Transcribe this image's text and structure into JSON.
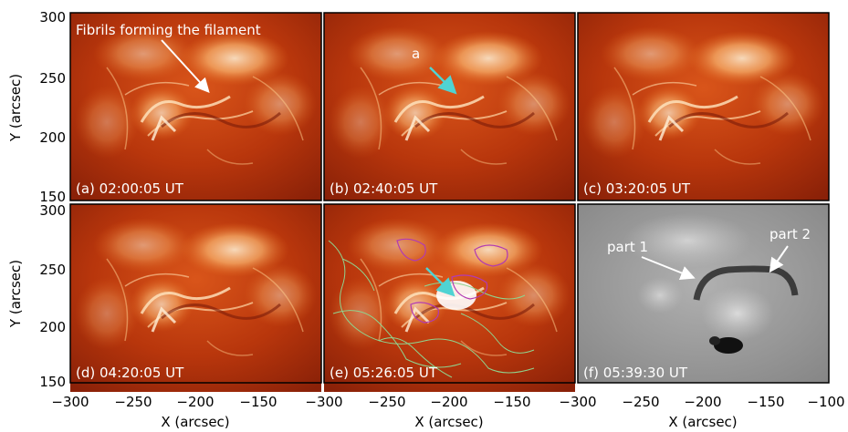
{
  "colors": {
    "aia_dark": "#7a1a08",
    "aia_mid": "#c9420f",
    "aia_bright": "#ffd9a8",
    "halpha_gray": "#9a9a9a",
    "arrow_white": "#ffffff",
    "arrow_cyan": "#4fd3d3",
    "contour_green": "#8fd48f",
    "contour_magenta": "#b23ab2"
  },
  "axes": {
    "y_label": "Y (arcsec)",
    "x_label": "X (arcsec)",
    "y_ticks": [
      "300",
      "250",
      "200",
      "150"
    ],
    "x_ticks_col1": [
      "−300",
      "−250",
      "−200",
      "−150"
    ],
    "x_ticks_col2": [
      "−300",
      "−250",
      "−200",
      "−150"
    ],
    "x_ticks_col3": [
      "−300",
      "−250",
      "−200",
      "−150",
      "−100"
    ]
  },
  "panels": {
    "a": {
      "label": "(a) 02:00:05 UT",
      "annotation": "Fibrils forming the filament"
    },
    "b": {
      "label": "(b) 02:40:05 UT",
      "annotation": "a"
    },
    "c": {
      "label": "(c) 03:20:05 UT"
    },
    "d": {
      "label": "(d) 04:20:05 UT"
    },
    "e": {
      "label": "(e) 05:26:05 UT"
    },
    "f": {
      "label": "(f) 05:39:30 UT",
      "part1": "part 1",
      "part2": "part 2"
    }
  }
}
